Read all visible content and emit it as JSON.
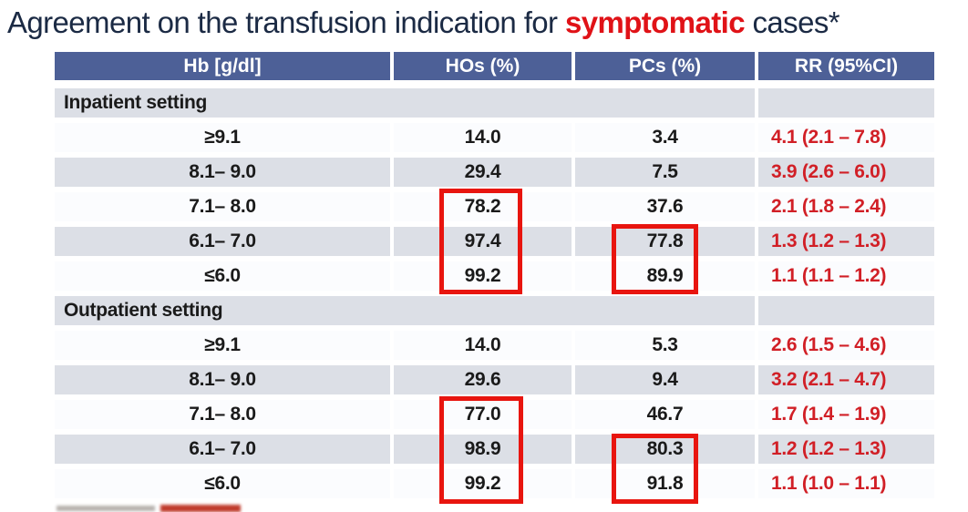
{
  "title": {
    "prefix": "Agreement on the transfusion indication for ",
    "highlight": "symptomatic",
    "suffix": " cases*"
  },
  "table": {
    "columns": [
      {
        "key": "hb",
        "label": "Hb [g/dl]"
      },
      {
        "key": "hos",
        "label": "HOs (%)"
      },
      {
        "key": "pcs",
        "label": "PCs (%)"
      },
      {
        "key": "rr",
        "label": "RR (95%CI)"
      }
    ],
    "sections": [
      {
        "label": "Inpatient setting",
        "rows": [
          {
            "hb": "≥9.1",
            "hos": "14.0",
            "pcs": "3.4",
            "rr": "4.1 (2.1 – 7.8)"
          },
          {
            "hb": "8.1– 9.0",
            "hos": "29.4",
            "pcs": "7.5",
            "rr": "3.9 (2.6 – 6.0)"
          },
          {
            "hb": "7.1– 8.0",
            "hos": "78.2",
            "pcs": "37.6",
            "rr": "2.1 (1.8 – 2.4)"
          },
          {
            "hb": "6.1– 7.0",
            "hos": "97.4",
            "pcs": "77.8",
            "rr": "1.3 (1.2 – 1.3)"
          },
          {
            "hb": "≤6.0",
            "hos": "99.2",
            "pcs": "89.9",
            "rr": "1.1 (1.1 – 1.2)"
          }
        ]
      },
      {
        "label": "Outpatient setting",
        "rows": [
          {
            "hb": "≥9.1",
            "hos": "14.0",
            "pcs": "5.3",
            "rr": "2.6 (1.5 – 4.6)"
          },
          {
            "hb": "8.1– 9.0",
            "hos": "29.6",
            "pcs": "9.4",
            "rr": "3.2 (2.1 – 4.7)"
          },
          {
            "hb": "7.1– 8.0",
            "hos": "77.0",
            "pcs": "46.7",
            "rr": "1.7 (1.4 – 1.9)"
          },
          {
            "hb": "6.1– 7.0",
            "hos": "98.9",
            "pcs": "80.3",
            "rr": "1.2 (1.2 – 1.3)"
          },
          {
            "hb": "≤6.0",
            "hos": "99.2",
            "pcs": "91.8",
            "rr": "1.1 (1.0 – 1.1)"
          }
        ]
      }
    ],
    "highlights": [
      {
        "section": "Inpatient setting",
        "column": "hos",
        "rows": [
          "7.1– 8.0",
          "6.1– 7.0",
          "≤6.0"
        ],
        "values": [
          "78.2",
          "97.4",
          "99.2"
        ]
      },
      {
        "section": "Inpatient setting",
        "column": "pcs",
        "rows": [
          "6.1– 7.0",
          "≤6.0"
        ],
        "values": [
          "77.8",
          "89.9"
        ]
      },
      {
        "section": "Outpatient setting",
        "column": "hos",
        "rows": [
          "7.1– 8.0",
          "6.1– 7.0",
          "≤6.0"
        ],
        "values": [
          "77.0",
          "98.9",
          "99.2"
        ]
      },
      {
        "section": "Outpatient setting",
        "column": "pcs",
        "rows": [
          "6.1– 7.0",
          "≤6.0"
        ],
        "values": [
          "80.3",
          "91.8"
        ]
      }
    ]
  },
  "colors": {
    "header_bg": "#4d6097",
    "row_gray": "#dcdfe6",
    "row_white": "#fbfcfe",
    "rr_text": "#d11f26",
    "highlight_box": "#e8150f",
    "title_text": "#1b2a44",
    "title_highlight": "#e01217"
  }
}
